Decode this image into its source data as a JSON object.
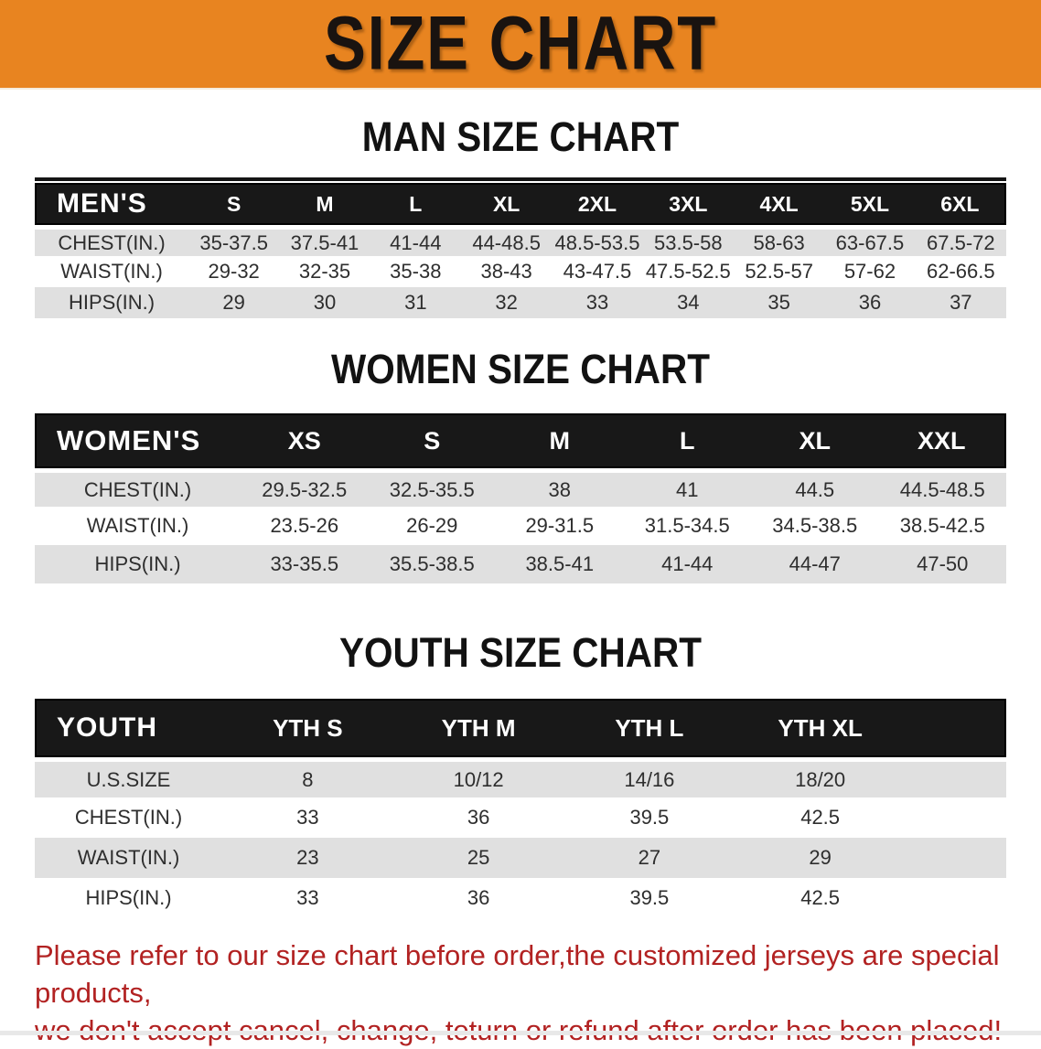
{
  "banner": {
    "title": "SIZE CHART"
  },
  "sections": [
    {
      "heading": "MAN SIZE CHART",
      "table": {
        "corner_label": "MEN'S",
        "sizes": [
          "S",
          "M",
          "L",
          "XL",
          "2XL",
          "3XL",
          "4XL",
          "5XL",
          "6XL"
        ],
        "rows": [
          {
            "label": "CHEST(IN.)",
            "values": [
              "35-37.5",
              "37.5-41",
              "41-44",
              "44-48.5",
              "48.5-53.5",
              "53.5-58",
              "58-63",
              "63-67.5",
              "67.5-72"
            ]
          },
          {
            "label": "WAIST(IN.)",
            "values": [
              "29-32",
              "32-35",
              "35-38",
              "38-43",
              "43-47.5",
              "47.5-52.5",
              "52.5-57",
              "57-62",
              "62-66.5"
            ]
          },
          {
            "label": "HIPS(IN.)",
            "values": [
              "29",
              "30",
              "31",
              "32",
              "33",
              "34",
              "35",
              "36",
              "37"
            ]
          }
        ]
      }
    },
    {
      "heading": "WOMEN SIZE CHART",
      "table": {
        "corner_label": "WOMEN'S",
        "sizes": [
          "XS",
          "S",
          "M",
          "L",
          "XL",
          "XXL"
        ],
        "rows": [
          {
            "label": "CHEST(IN.)",
            "values": [
              "29.5-32.5",
              "32.5-35.5",
              "38",
              "41",
              "44.5",
              "44.5-48.5"
            ]
          },
          {
            "label": "WAIST(IN.)",
            "values": [
              "23.5-26",
              "26-29",
              "29-31.5",
              "31.5-34.5",
              "34.5-38.5",
              "38.5-42.5"
            ]
          },
          {
            "label": "HIPS(IN.)",
            "values": [
              "33-35.5",
              "35.5-38.5",
              "38.5-41",
              "41-44",
              "44-47",
              "47-50"
            ]
          }
        ]
      }
    },
    {
      "heading": "YOUTH SIZE CHART",
      "table": {
        "corner_label": "YOUTH",
        "sizes": [
          "YTH S",
          "YTH M",
          "YTH L",
          "YTH XL"
        ],
        "rows": [
          {
            "label": "U.S.SIZE",
            "values": [
              "8",
              "10/12",
              "14/16",
              "18/20"
            ]
          },
          {
            "label": "CHEST(IN.)",
            "values": [
              "33",
              "36",
              "39.5",
              "42.5"
            ]
          },
          {
            "label": "WAIST(IN.)",
            "values": [
              "23",
              "25",
              "27",
              "29"
            ]
          },
          {
            "label": "HIPS(IN.)",
            "values": [
              "33",
              "36",
              "39.5",
              "42.5"
            ]
          }
        ]
      }
    }
  ],
  "disclaimer": {
    "line1": "Please refer to our size chart before order,the customized jerseys are special products,",
    "line2": "we don't accept cancel, change, teturn or refund after order has been placed!"
  },
  "colors": {
    "banner_bg": "#E88420",
    "header_bg": "#181818",
    "row_alt_bg": "#E0E0E0",
    "disclaimer_red": "#B22222"
  }
}
